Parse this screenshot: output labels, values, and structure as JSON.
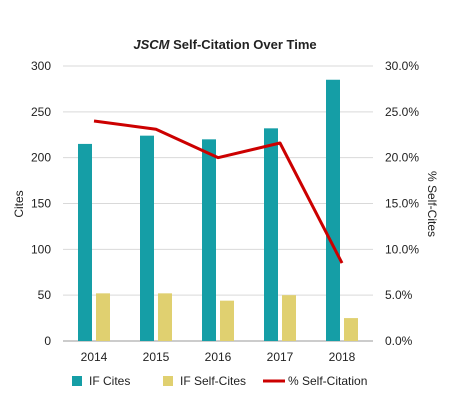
{
  "chart_data": {
    "type": "bar",
    "title_italic": "JSCM",
    "title_rest": " Self-Citation Over Time",
    "categories": [
      "2014",
      "2015",
      "2016",
      "2017",
      "2018"
    ],
    "series": [
      {
        "name": "IF Cites",
        "kind": "bar",
        "axis": "left",
        "color": "#159ea6",
        "values": [
          215,
          224,
          220,
          232,
          285
        ]
      },
      {
        "name": "IF Self-Cites",
        "kind": "bar",
        "axis": "left",
        "color": "#e0d070",
        "values": [
          52,
          52,
          44,
          50,
          25
        ]
      },
      {
        "name": "% Self-Citation",
        "kind": "line",
        "axis": "right",
        "color": "#cc0000",
        "values": [
          24.0,
          23.1,
          20.0,
          21.6,
          8.5
        ]
      }
    ],
    "ylabel_left": "Cites",
    "ylabel_right": "% Self-Cites",
    "ylim_left": [
      0,
      300
    ],
    "yticks_left": [
      "0",
      "50",
      "100",
      "150",
      "200",
      "250",
      "300"
    ],
    "ylim_right": [
      0,
      30
    ],
    "yticks_right": [
      "0.0%",
      "5.0%",
      "10.0%",
      "15.0%",
      "20.0%",
      "25.0%",
      "30.0%"
    ],
    "grid": "horizontal",
    "legend_position": "bottom"
  }
}
